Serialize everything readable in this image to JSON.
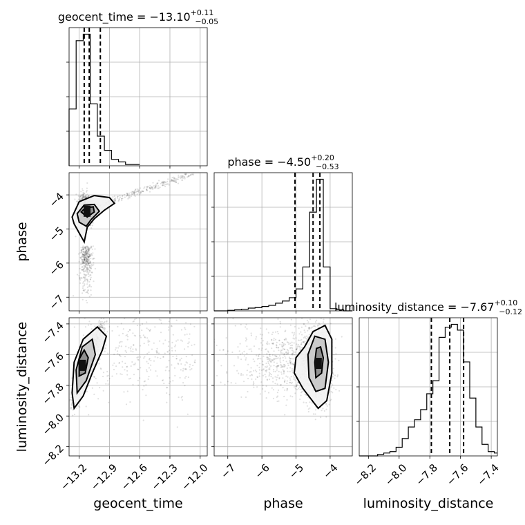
{
  "chart_data": {
    "type": "corner",
    "parameters": [
      {
        "name": "geocent_time",
        "xlabel": "geocent_time",
        "range": [
          -13.3,
          -11.93
        ],
        "ticks": [
          -13.2,
          -12.9,
          -12.6,
          -12.3,
          -12.0
        ],
        "tick_labels": [
          "−13.2",
          "−12.9",
          "−12.6",
          "−12.3",
          "−12.0"
        ],
        "title": "geocent_time = −13.10",
        "title_plus": "+0.11",
        "title_minus": "−0.05",
        "quantiles": [
          -13.15,
          -13.1,
          -12.99
        ],
        "hist_bins": [
          -13.3,
          -13.23,
          -13.16,
          -13.09,
          -13.02,
          -12.95,
          -12.88,
          -12.81,
          -12.74,
          -12.67,
          -12.6
        ],
        "hist_counts": [
          0.44,
          0.97,
          1.02,
          0.48,
          0.23,
          0.12,
          0.05,
          0.03,
          0.01,
          0.01
        ]
      },
      {
        "name": "phase",
        "xlabel": "phase",
        "ylabel": "phase",
        "range": [
          -7.4,
          -3.35
        ],
        "ticks": [
          -7,
          -6,
          -5,
          -4
        ],
        "tick_labels": [
          "−7",
          "−6",
          "−5",
          "−4"
        ],
        "title": "phase = −4.50",
        "title_plus": "+0.20",
        "title_minus": "−0.53",
        "quantiles": [
          -5.03,
          -4.5,
          -4.3
        ],
        "hist_bins": [
          -7.4,
          -7.2,
          -7.0,
          -6.8,
          -6.6,
          -6.4,
          -6.2,
          -6.0,
          -5.8,
          -5.6,
          -5.4,
          -5.2,
          -5.0,
          -4.8,
          -4.6,
          -4.4,
          -4.2,
          -4.0,
          -3.8,
          -3.6,
          -3.35
        ],
        "hist_counts": [
          0.0,
          0.0,
          0.005,
          0.01,
          0.015,
          0.025,
          0.03,
          0.04,
          0.05,
          0.07,
          0.09,
          0.12,
          0.2,
          0.4,
          0.9,
          1.2,
          0.4,
          0.02,
          0.01,
          0.0
        ]
      },
      {
        "name": "luminosity_distance",
        "xlabel": "luminosity_distance",
        "ylabel": "luminosity_distance",
        "range": [
          -8.26,
          -7.36
        ],
        "ticks": [
          -8.2,
          -8.0,
          -7.8,
          -7.6,
          -7.4
        ],
        "tick_labels": [
          "−8.2",
          "−8.0",
          "−7.8",
          "−7.6",
          "−7.4"
        ],
        "title": "luminosity_distance = −7.67",
        "title_plus": "+0.10",
        "title_minus": "−0.12",
        "quantiles": [
          -7.79,
          -7.67,
          -7.58
        ],
        "hist_bins": [
          -8.26,
          -8.22,
          -8.18,
          -8.14,
          -8.1,
          -8.06,
          -8.02,
          -7.98,
          -7.94,
          -7.9,
          -7.86,
          -7.82,
          -7.78,
          -7.74,
          -7.7,
          -7.66,
          -7.62,
          -7.58,
          -7.54,
          -7.5,
          -7.46,
          -7.42,
          -7.38,
          -7.36
        ],
        "hist_counts": [
          0.0,
          0.0,
          0.0,
          0.01,
          0.02,
          0.03,
          0.06,
          0.12,
          0.2,
          0.25,
          0.32,
          0.43,
          0.52,
          0.82,
          0.89,
          0.91,
          0.87,
          0.65,
          0.4,
          0.2,
          0.08,
          0.03,
          0.02
        ]
      }
    ],
    "contours": {
      "phase_vs_geocent_time": [
        [
          [
            -13.27,
            -4.65
          ],
          [
            -13.25,
            -4.85
          ],
          [
            -13.19,
            -5.17
          ],
          [
            -13.15,
            -5.38
          ],
          [
            -13.12,
            -4.95
          ],
          [
            -13.05,
            -4.7
          ],
          [
            -12.95,
            -4.45
          ],
          [
            -12.85,
            -4.25
          ],
          [
            -12.9,
            -4.08
          ],
          [
            -13.05,
            -4.02
          ],
          [
            -13.2,
            -4.2
          ],
          [
            -13.27,
            -4.65
          ]
        ],
        [
          [
            -13.2,
            -4.8
          ],
          [
            -13.13,
            -4.92
          ],
          [
            -13.08,
            -4.72
          ],
          [
            -13.0,
            -4.48
          ],
          [
            -13.05,
            -4.28
          ],
          [
            -13.15,
            -4.3
          ],
          [
            -13.22,
            -4.55
          ],
          [
            -13.2,
            -4.8
          ]
        ],
        [
          [
            -13.18,
            -4.5
          ],
          [
            -13.12,
            -4.65
          ],
          [
            -13.05,
            -4.5
          ],
          [
            -13.06,
            -4.35
          ],
          [
            -13.14,
            -4.38
          ],
          [
            -13.18,
            -4.5
          ]
        ]
      ],
      "luminosity_distance_vs_geocent_time": [
        [
          [
            -13.25,
            -7.95
          ],
          [
            -13.16,
            -7.87
          ],
          [
            -13.07,
            -7.72
          ],
          [
            -12.97,
            -7.57
          ],
          [
            -12.93,
            -7.48
          ],
          [
            -13.02,
            -7.42
          ],
          [
            -13.16,
            -7.5
          ],
          [
            -13.25,
            -7.65
          ],
          [
            -13.27,
            -7.85
          ],
          [
            -13.25,
            -7.95
          ]
        ],
        [
          [
            -13.22,
            -7.85
          ],
          [
            -13.13,
            -7.77
          ],
          [
            -13.04,
            -7.6
          ],
          [
            -13.07,
            -7.5
          ],
          [
            -13.17,
            -7.55
          ],
          [
            -13.23,
            -7.7
          ],
          [
            -13.22,
            -7.85
          ]
        ],
        [
          [
            -13.2,
            -7.74
          ],
          [
            -13.14,
            -7.72
          ],
          [
            -13.11,
            -7.62
          ],
          [
            -13.15,
            -7.57
          ],
          [
            -13.2,
            -7.63
          ],
          [
            -13.2,
            -7.74
          ]
        ]
      ],
      "luminosity_distance_vs_phase": [
        [
          [
            -4.35,
            -7.95
          ],
          [
            -4.1,
            -7.9
          ],
          [
            -3.95,
            -7.72
          ],
          [
            -3.95,
            -7.5
          ],
          [
            -4.15,
            -7.41
          ],
          [
            -4.5,
            -7.45
          ],
          [
            -4.75,
            -7.55
          ],
          [
            -5.0,
            -7.62
          ],
          [
            -5.05,
            -7.72
          ],
          [
            -4.8,
            -7.82
          ],
          [
            -4.35,
            -7.95
          ]
        ],
        [
          [
            -4.42,
            -7.84
          ],
          [
            -4.15,
            -7.82
          ],
          [
            -4.05,
            -7.65
          ],
          [
            -4.15,
            -7.5
          ],
          [
            -4.45,
            -7.48
          ],
          [
            -4.65,
            -7.6
          ],
          [
            -4.62,
            -7.75
          ],
          [
            -4.42,
            -7.84
          ]
        ],
        [
          [
            -4.42,
            -7.75
          ],
          [
            -4.25,
            -7.72
          ],
          [
            -4.2,
            -7.62
          ],
          [
            -4.28,
            -7.55
          ],
          [
            -4.4,
            -7.56
          ],
          [
            -4.45,
            -7.65
          ],
          [
            -4.42,
            -7.75
          ]
        ]
      ]
    },
    "grid": true
  }
}
